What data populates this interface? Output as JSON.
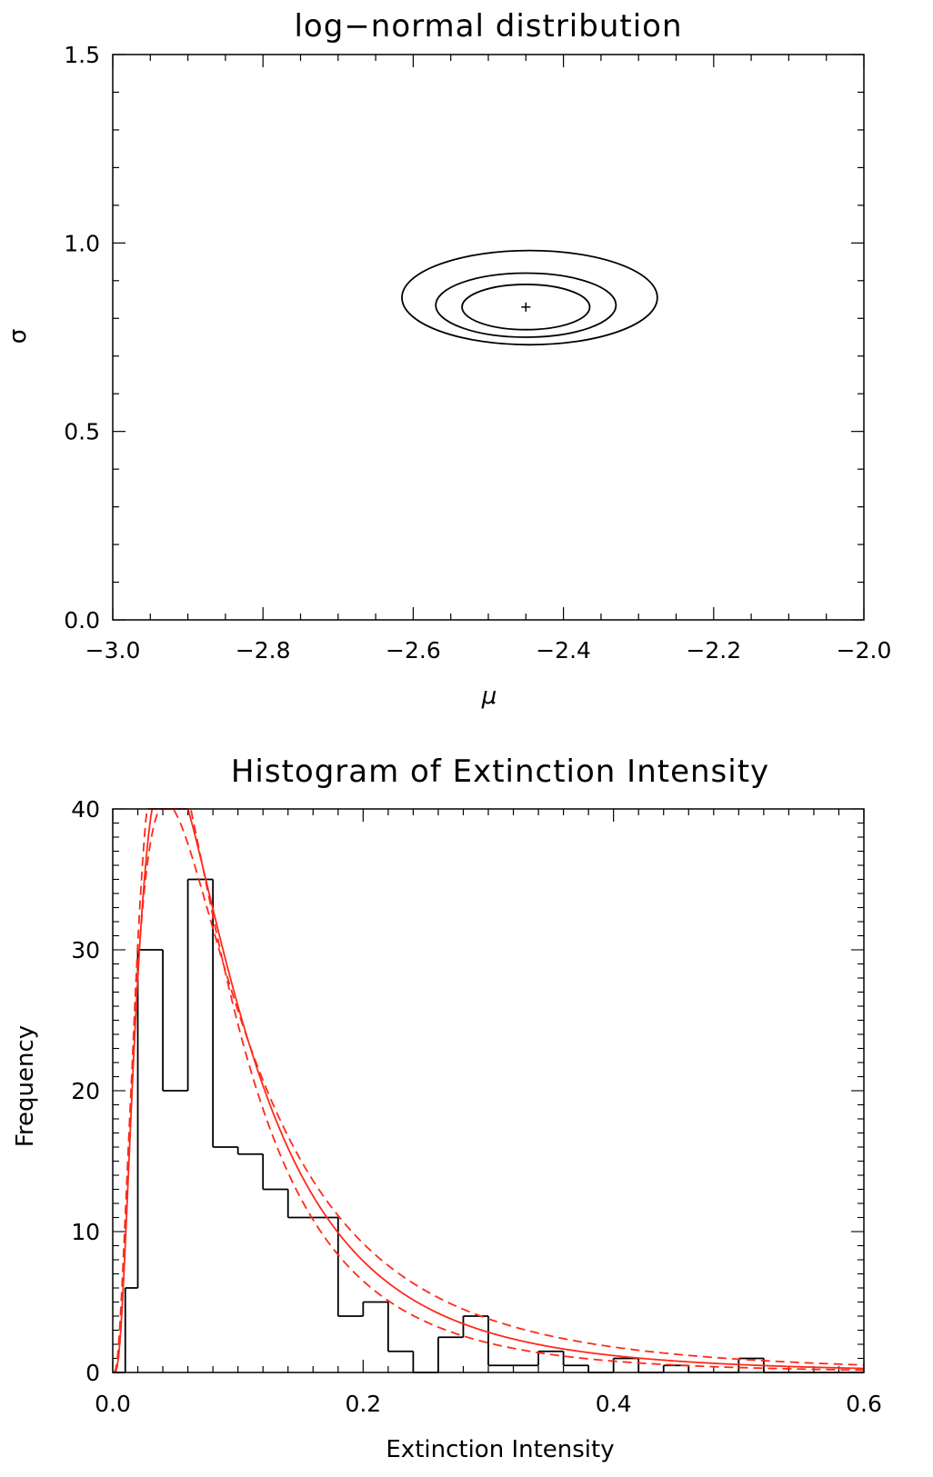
{
  "chart_data": [
    {
      "type": "contour",
      "title": "log−normal distribution",
      "xlabel": "μ",
      "ylabel": "σ",
      "xlim": [
        -3.0,
        -2.0
      ],
      "ylim": [
        0.0,
        1.5
      ],
      "x_ticks": [
        -3.0,
        -2.8,
        -2.6,
        -2.4,
        -2.2,
        -2.0
      ],
      "x_tick_labels": [
        "−3.0",
        "−2.8",
        "−2.6",
        "−2.4",
        "−2.2",
        "−2.0"
      ],
      "y_ticks": [
        0.0,
        0.5,
        1.0,
        1.5
      ],
      "y_tick_labels": [
        "0.0",
        "0.5",
        "1.0",
        "1.5"
      ],
      "best_fit": {
        "mu": -2.45,
        "sigma": 0.83
      },
      "contours": [
        {
          "mu_center": -2.45,
          "sigma_center": 0.83,
          "mu_halfwidth": 0.085,
          "sigma_halfwidth": 0.06
        },
        {
          "mu_center": -2.45,
          "sigma_center": 0.835,
          "mu_halfwidth": 0.12,
          "sigma_halfwidth": 0.085
        },
        {
          "mu_center": -2.445,
          "sigma_center": 0.855,
          "mu_halfwidth": 0.17,
          "sigma_halfwidth": 0.125
        }
      ],
      "grid": false,
      "colors": {
        "contour": "#000000"
      }
    },
    {
      "type": "histogram",
      "title": "Histogram of Extinction Intensity",
      "xlabel": "Extinction Intensity",
      "ylabel": "Frequency",
      "xlim": [
        0.0,
        0.6
      ],
      "ylim": [
        0,
        40
      ],
      "x_ticks": [
        0.0,
        0.2,
        0.4,
        0.6
      ],
      "x_tick_labels": [
        "0.0",
        "0.2",
        "0.4",
        "0.6"
      ],
      "y_ticks": [
        0,
        10,
        20,
        30,
        40
      ],
      "y_tick_labels": [
        "0",
        "10",
        "20",
        "30",
        "40"
      ],
      "bin_width": 0.02,
      "bins": [
        {
          "x0": 0.0,
          "x1": 0.01,
          "count": 0
        },
        {
          "x0": 0.01,
          "x1": 0.02,
          "count": 6
        },
        {
          "x0": 0.02,
          "x1": 0.04,
          "count": 30
        },
        {
          "x0": 0.04,
          "x1": 0.06,
          "count": 20
        },
        {
          "x0": 0.06,
          "x1": 0.08,
          "count": 35
        },
        {
          "x0": 0.08,
          "x1": 0.1,
          "count": 16
        },
        {
          "x0": 0.1,
          "x1": 0.12,
          "count": 15.5
        },
        {
          "x0": 0.12,
          "x1": 0.14,
          "count": 13
        },
        {
          "x0": 0.14,
          "x1": 0.18,
          "count": 11
        },
        {
          "x0": 0.18,
          "x1": 0.2,
          "count": 4
        },
        {
          "x0": 0.2,
          "x1": 0.22,
          "count": 5
        },
        {
          "x0": 0.22,
          "x1": 0.24,
          "count": 1.5
        },
        {
          "x0": 0.24,
          "x1": 0.26,
          "count": 0
        },
        {
          "x0": 0.26,
          "x1": 0.28,
          "count": 2.5
        },
        {
          "x0": 0.28,
          "x1": 0.3,
          "count": 4
        },
        {
          "x0": 0.3,
          "x1": 0.34,
          "count": 0.5
        },
        {
          "x0": 0.34,
          "x1": 0.36,
          "count": 1.5
        },
        {
          "x0": 0.36,
          "x1": 0.38,
          "count": 0.5
        },
        {
          "x0": 0.38,
          "x1": 0.4,
          "count": 0
        },
        {
          "x0": 0.4,
          "x1": 0.42,
          "count": 1
        },
        {
          "x0": 0.42,
          "x1": 0.44,
          "count": 0
        },
        {
          "x0": 0.44,
          "x1": 0.46,
          "count": 0.5
        },
        {
          "x0": 0.46,
          "x1": 0.5,
          "count": 0
        },
        {
          "x0": 0.5,
          "x1": 0.52,
          "count": 1
        },
        {
          "x0": 0.52,
          "x1": 0.6,
          "count": 0
        }
      ],
      "fits": [
        {
          "style": "solid",
          "mu": -2.45,
          "sigma": 0.83,
          "scale": 5.5
        },
        {
          "style": "dashed",
          "mu": -2.55,
          "sigma": 0.8,
          "scale": 5.2
        },
        {
          "style": "dashed",
          "mu": -2.35,
          "sigma": 0.9,
          "scale": 5.8
        }
      ],
      "grid": false,
      "colors": {
        "histogram": "#000000",
        "fit": "#ff2a1a"
      }
    }
  ]
}
